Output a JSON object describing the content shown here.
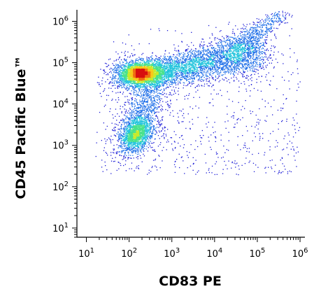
{
  "chart_data": {
    "type": "scatter",
    "style": "density-pseudocolor",
    "xlabel": "CD83 PE",
    "ylabel": "CD45 Pacific Blue™",
    "xscale": "log",
    "yscale": "log",
    "xlim": [
      6,
      1300000
    ],
    "ylim": [
      6,
      1900000
    ],
    "x_ticks": [
      {
        "base": "10",
        "exp": "1"
      },
      {
        "base": "10",
        "exp": "2"
      },
      {
        "base": "10",
        "exp": "3"
      },
      {
        "base": "10",
        "exp": "4"
      },
      {
        "base": "10",
        "exp": "5"
      },
      {
        "base": "10",
        "exp": "6"
      }
    ],
    "y_ticks": [
      {
        "base": "10",
        "exp": "1"
      },
      {
        "base": "10",
        "exp": "2"
      },
      {
        "base": "10",
        "exp": "3"
      },
      {
        "base": "10",
        "exp": "4"
      },
      {
        "base": "10",
        "exp": "5"
      },
      {
        "base": "10",
        "exp": "6"
      }
    ],
    "populations": [
      {
        "name": "",
        "center_x": 180,
        "center_y": 55000,
        "relative_density": 1.0
      },
      {
        "name": "",
        "center_x": 8000,
        "center_y": 65000,
        "relative_density": 0.45
      },
      {
        "name": "",
        "center_x": 150,
        "center_y": 1800,
        "relative_density": 0.35
      },
      {
        "name": "",
        "center_x": 150000,
        "center_y": 400000,
        "relative_density": 0.12
      }
    ],
    "grid": false,
    "legend": "none",
    "colormap": [
      "#1a1ad6",
      "#1f6fe8",
      "#22c4dc",
      "#49e28a",
      "#c8ea2c",
      "#f7c91a",
      "#f06e12",
      "#d81010"
    ]
  }
}
